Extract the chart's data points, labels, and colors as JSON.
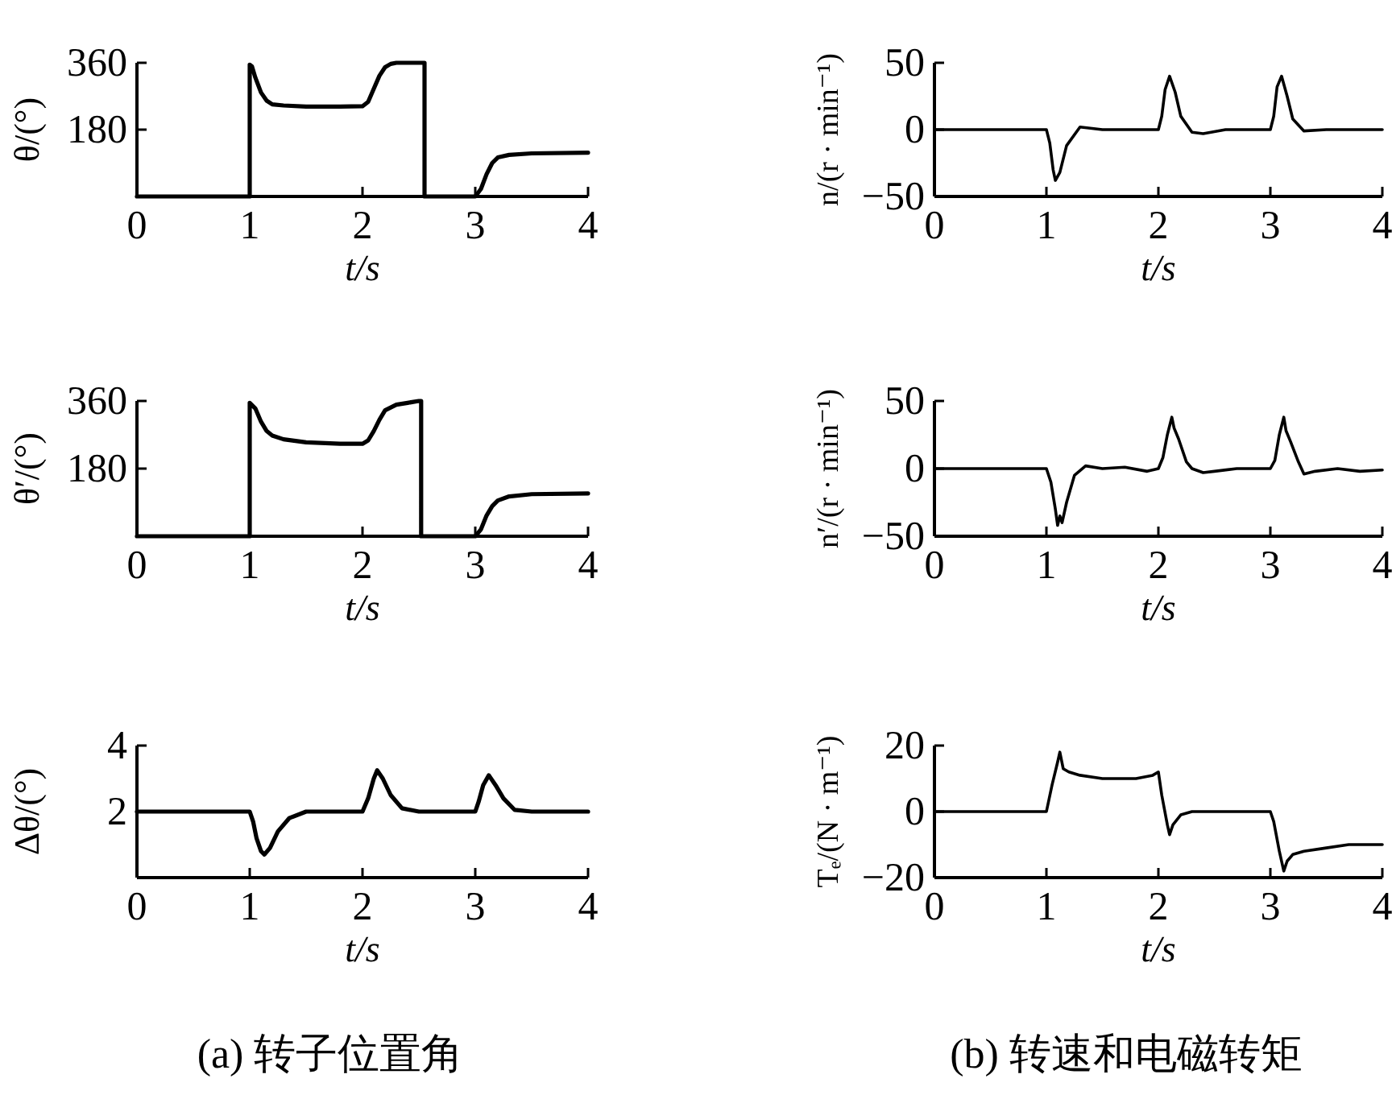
{
  "chart_data": [
    {
      "type": "line",
      "xlabel": "t/s",
      "ylabel": "θ/(°)",
      "xlim": [
        0,
        4
      ],
      "xticks": [
        0,
        1,
        2,
        3,
        4
      ],
      "ylim": [
        0,
        360
      ],
      "yticks": [
        180,
        360
      ],
      "series": [
        {
          "color": "#000000",
          "x": [
            0,
            1,
            1,
            1.02,
            1.05,
            1.1,
            1.15,
            1.2,
            1.3,
            1.5,
            1.8,
            2.0,
            2.05,
            2.1,
            2.15,
            2.2,
            2.25,
            2.3,
            2.55,
            2.55,
            3.0,
            3.05,
            3.1,
            3.15,
            3.2,
            3.3,
            3.5,
            4
          ],
          "values": [
            0,
            0,
            355,
            350,
            320,
            280,
            258,
            248,
            245,
            242,
            242,
            243,
            255,
            290,
            325,
            348,
            357,
            360,
            360,
            0,
            0,
            20,
            60,
            90,
            105,
            112,
            116,
            118
          ]
        }
      ]
    },
    {
      "type": "line",
      "xlabel": "t/s",
      "ylabel": "n/(r · min⁻¹)",
      "xlim": [
        0,
        4
      ],
      "xticks": [
        0,
        1,
        2,
        3,
        4
      ],
      "ylim": [
        -50,
        50
      ],
      "yticks": [
        -50,
        0,
        50
      ],
      "series": [
        {
          "color": "#000000",
          "x": [
            0,
            1.0,
            1.03,
            1.06,
            1.08,
            1.12,
            1.18,
            1.3,
            1.5,
            2.0,
            2.03,
            2.06,
            2.1,
            2.15,
            2.2,
            2.3,
            2.4,
            2.6,
            3.0,
            3.03,
            3.06,
            3.1,
            3.15,
            3.2,
            3.3,
            3.5,
            4
          ],
          "values": [
            0,
            0,
            -10,
            -30,
            -38,
            -32,
            -12,
            2,
            0,
            0,
            10,
            30,
            40,
            28,
            10,
            -2,
            -3,
            0,
            0,
            10,
            32,
            40,
            25,
            8,
            -1,
            0,
            0
          ]
        }
      ]
    },
    {
      "type": "line",
      "xlabel": "t/s",
      "ylabel": "θ′/(°)",
      "xlim": [
        0,
        4
      ],
      "xticks": [
        0,
        1,
        2,
        3,
        4
      ],
      "ylim": [
        0,
        360
      ],
      "yticks": [
        180,
        360
      ],
      "series": [
        {
          "color": "#000000",
          "x": [
            0,
            1,
            1,
            1.05,
            1.1,
            1.15,
            1.2,
            1.3,
            1.5,
            1.8,
            2.0,
            2.05,
            2.1,
            2.15,
            2.2,
            2.3,
            2.4,
            2.5,
            2.52,
            2.52,
            3.0,
            3.05,
            3.1,
            3.15,
            3.2,
            3.3,
            3.5,
            4
          ],
          "values": [
            0,
            0,
            355,
            340,
            305,
            280,
            268,
            258,
            250,
            246,
            246,
            255,
            280,
            310,
            335,
            350,
            355,
            360,
            360,
            0,
            0,
            18,
            55,
            80,
            95,
            106,
            112,
            114
          ]
        }
      ]
    },
    {
      "type": "line",
      "xlabel": "t/s",
      "ylabel": "n′/(r · min⁻¹)",
      "xlim": [
        0,
        4
      ],
      "xticks": [
        0,
        1,
        2,
        3,
        4
      ],
      "ylim": [
        -50,
        50
      ],
      "yticks": [
        -50,
        0,
        50
      ],
      "series": [
        {
          "color": "#000000",
          "x": [
            0,
            1.0,
            1.04,
            1.08,
            1.1,
            1.12,
            1.14,
            1.18,
            1.25,
            1.35,
            1.5,
            1.7,
            1.9,
            2.0,
            2.04,
            2.08,
            2.12,
            2.14,
            2.18,
            2.25,
            2.3,
            2.4,
            2.5,
            2.7,
            2.9,
            3.0,
            3.04,
            3.08,
            3.12,
            3.14,
            3.18,
            3.25,
            3.3,
            3.4,
            3.6,
            3.8,
            4
          ],
          "values": [
            0,
            0,
            -10,
            -30,
            -42,
            -35,
            -40,
            -25,
            -5,
            2,
            0,
            1,
            -2,
            0,
            8,
            25,
            38,
            30,
            22,
            5,
            0,
            -3,
            -2,
            0,
            0,
            0,
            6,
            25,
            38,
            28,
            20,
            5,
            -4,
            -2,
            0,
            -2,
            -1
          ]
        }
      ]
    },
    {
      "type": "line",
      "xlabel": "t/s",
      "ylabel": "Δθ/(°)",
      "xlim": [
        0,
        4
      ],
      "xticks": [
        0,
        1,
        2,
        3,
        4
      ],
      "ylim": [
        0,
        4
      ],
      "yticks": [
        2,
        4
      ],
      "annotations": [
        "(a) 转子位置角"
      ],
      "series": [
        {
          "color": "#000000",
          "x": [
            0,
            1.0,
            1.03,
            1.06,
            1.1,
            1.13,
            1.18,
            1.25,
            1.35,
            1.5,
            2.0,
            2.05,
            2.1,
            2.13,
            2.18,
            2.25,
            2.35,
            2.5,
            3.0,
            3.03,
            3.07,
            3.12,
            3.18,
            3.25,
            3.35,
            3.5,
            4
          ],
          "values": [
            2,
            2,
            1.7,
            1.2,
            0.8,
            0.7,
            0.9,
            1.4,
            1.8,
            2,
            2,
            2.4,
            3.0,
            3.25,
            3.0,
            2.5,
            2.1,
            2,
            2,
            2.3,
            2.8,
            3.1,
            2.8,
            2.4,
            2.05,
            2,
            2
          ]
        }
      ]
    },
    {
      "type": "line",
      "xlabel": "t/s",
      "ylabel": "Tₑ/(N · m⁻¹)",
      "xlim": [
        0,
        4
      ],
      "xticks": [
        0,
        1,
        2,
        3,
        4
      ],
      "ylim": [
        -20,
        20
      ],
      "yticks": [
        -20,
        0,
        20
      ],
      "annotations": [
        "(b) 转速和电磁转矩"
      ],
      "series": [
        {
          "color": "#000000",
          "x": [
            0,
            1.0,
            1.05,
            1.1,
            1.12,
            1.15,
            1.2,
            1.3,
            1.5,
            1.8,
            1.95,
            2.0,
            2.03,
            2.08,
            2.1,
            2.13,
            2.2,
            2.3,
            2.5,
            2.8,
            3.0,
            3.03,
            3.08,
            3.12,
            3.15,
            3.2,
            3.3,
            3.5,
            3.7,
            4
          ],
          "values": [
            0,
            0,
            8,
            15,
            18,
            13,
            12,
            11,
            10,
            10,
            11,
            12,
            5,
            -4,
            -7,
            -4,
            -1,
            0,
            0,
            0,
            0,
            -3,
            -12,
            -18,
            -15,
            -13,
            -12,
            -11,
            -10,
            -10
          ]
        }
      ]
    }
  ]
}
